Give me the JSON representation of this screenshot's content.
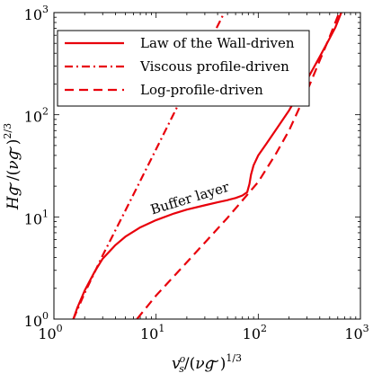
{
  "chart_data": {
    "type": "line",
    "xscale": "log",
    "yscale": "log",
    "xlim": [
      1,
      1000
    ],
    "ylim": [
      1,
      1000
    ],
    "grid": false,
    "legend_position": "top-left",
    "xlabel": "v_s^o/(νg̃)^{1/3}",
    "ylabel": "Hg̃/(νg̃)^{2/3}",
    "xticks": [
      {
        "base": "10",
        "exp": "0"
      },
      {
        "base": "10",
        "exp": "1"
      },
      {
        "base": "10",
        "exp": "2"
      },
      {
        "base": "10",
        "exp": "3"
      }
    ],
    "yticks": [
      {
        "base": "10",
        "exp": "0"
      },
      {
        "base": "10",
        "exp": "1"
      },
      {
        "base": "10",
        "exp": "2"
      },
      {
        "base": "10",
        "exp": "3"
      }
    ],
    "series": [
      {
        "name": "Law of the Wall-driven",
        "style": "solid",
        "color": "#e8000b",
        "points": [
          [
            1.55,
            1.0
          ],
          [
            1.7,
            1.3
          ],
          [
            2.0,
            1.9
          ],
          [
            2.5,
            2.9
          ],
          [
            3.0,
            3.9
          ],
          [
            4.0,
            5.3
          ],
          [
            5.0,
            6.4
          ],
          [
            7.0,
            7.9
          ],
          [
            10.0,
            9.3
          ],
          [
            15.0,
            10.8
          ],
          [
            20.0,
            11.8
          ],
          [
            30.0,
            13.0
          ],
          [
            40.0,
            13.9
          ],
          [
            50.0,
            14.6
          ],
          [
            60.0,
            15.3
          ],
          [
            70.0,
            16.2
          ],
          [
            78.0,
            17.5
          ],
          [
            82.0,
            21.0
          ],
          [
            85.0,
            26.0
          ],
          [
            90.0,
            32.0
          ],
          [
            100.0,
            40.0
          ],
          [
            120.0,
            52.0
          ],
          [
            150.0,
            72.0
          ],
          [
            200.0,
            110.0
          ],
          [
            300.0,
            220.0
          ],
          [
            400.0,
            370.0
          ],
          [
            500.0,
            560.0
          ],
          [
            570.0,
            720.0
          ],
          [
            650.0,
            1000.0
          ]
        ]
      },
      {
        "name": "Viscous profile-driven",
        "style": "dashdot",
        "color": "#e8000b",
        "points": [
          [
            1.55,
            1.0
          ],
          [
            2.0,
            1.8
          ],
          [
            3.0,
            4.2
          ],
          [
            5.0,
            11.5
          ],
          [
            10.0,
            46.0
          ],
          [
            20.0,
            185.0
          ],
          [
            30.0,
            415.0
          ],
          [
            40.0,
            740.0
          ],
          [
            46.5,
            1000.0
          ]
        ]
      },
      {
        "name": "Log-profile-driven",
        "style": "dashed",
        "color": "#e8000b",
        "points": [
          [
            6.5,
            1.0
          ],
          [
            10.0,
            1.7
          ],
          [
            20.0,
            3.6
          ],
          [
            30.0,
            5.6
          ],
          [
            50.0,
            9.8
          ],
          [
            70.0,
            14.5
          ],
          [
            100.0,
            22.0
          ],
          [
            150.0,
            42.0
          ],
          [
            200.0,
            70.0
          ],
          [
            300.0,
            170.0
          ],
          [
            400.0,
            340.0
          ],
          [
            500.0,
            580.0
          ],
          [
            620.0,
            1000.0
          ]
        ]
      }
    ],
    "annotations": [
      {
        "text": "Buffer layer",
        "x": 22,
        "y": 13.8,
        "rotate_deg": -17
      }
    ]
  }
}
